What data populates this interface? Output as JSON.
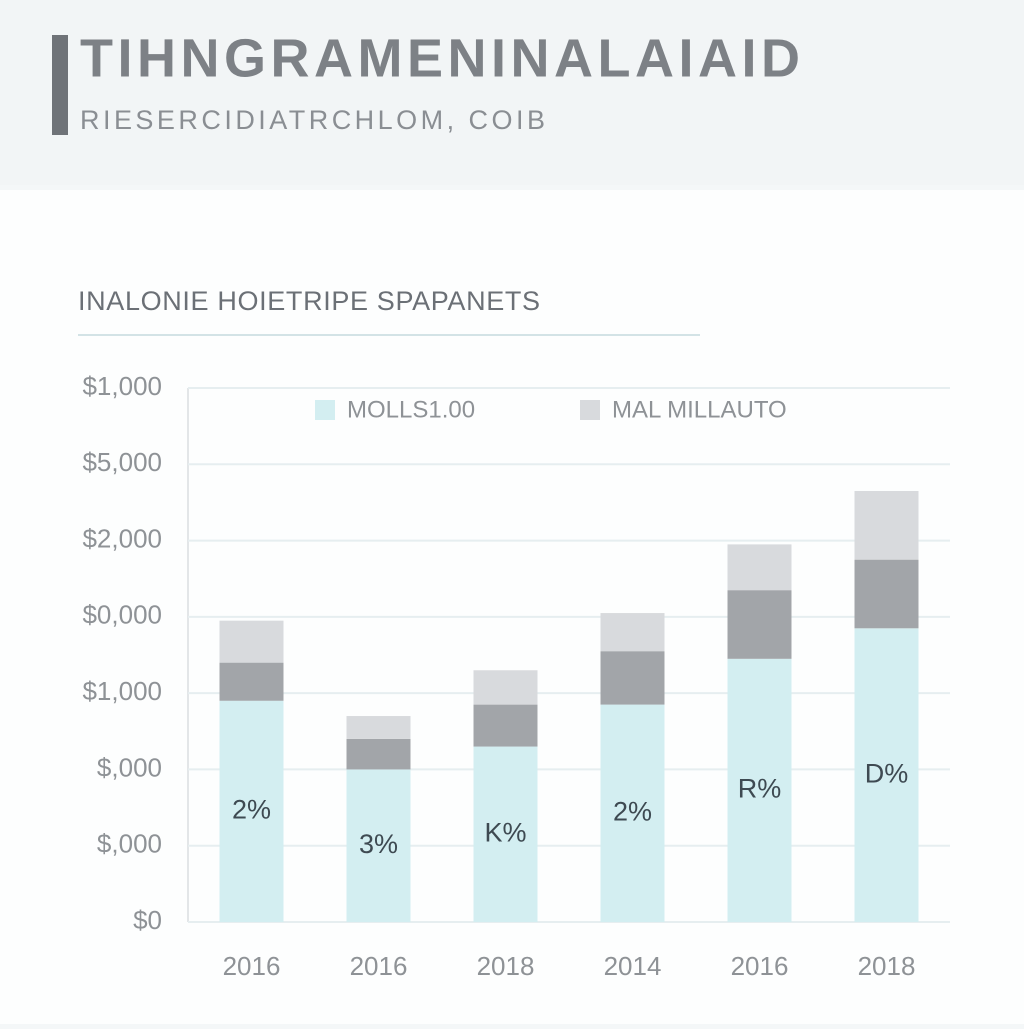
{
  "header": {
    "title": "TIHNGRAMENINALAIAID",
    "subtitle": "RIESERCIDIATRCHLOM, COIB"
  },
  "chart_data": {
    "type": "bar",
    "stacked": true,
    "title": "INALONIE HOIETRIPE SPAPANETS",
    "categories": [
      "2016",
      "2016",
      "2018",
      "2014",
      "2016",
      "2018"
    ],
    "series": [
      {
        "name": "MOLLS1.00",
        "color": "#d3eef1",
        "values": [
          2.9,
          2.0,
          2.3,
          2.85,
          3.45,
          3.85
        ]
      },
      {
        "color": "#a2a5a9",
        "values": [
          0.5,
          0.4,
          0.55,
          0.7,
          0.9,
          0.9
        ]
      },
      {
        "name": "MAL MILLAUTO",
        "color": "#d8dadd",
        "values": [
          0.55,
          0.3,
          0.45,
          0.5,
          0.6,
          0.9
        ]
      }
    ],
    "bar_labels": [
      "2%",
      "3%",
      "K%",
      "2%",
      "R%",
      "D%"
    ],
    "ylim": [
      0,
      7
    ],
    "yticks": [
      {
        "value": 0,
        "label": "$0"
      },
      {
        "value": 1,
        "label": "$,000"
      },
      {
        "value": 2,
        "label": "$,000"
      },
      {
        "value": 3,
        "label": "$1,000"
      },
      {
        "value": 4,
        "label": "$0,000"
      },
      {
        "value": 5,
        "label": "$2,000"
      },
      {
        "value": 6,
        "label": "$5,000"
      },
      {
        "value": 7,
        "label": "$1,000"
      }
    ],
    "grid": true,
    "legend": "top"
  }
}
